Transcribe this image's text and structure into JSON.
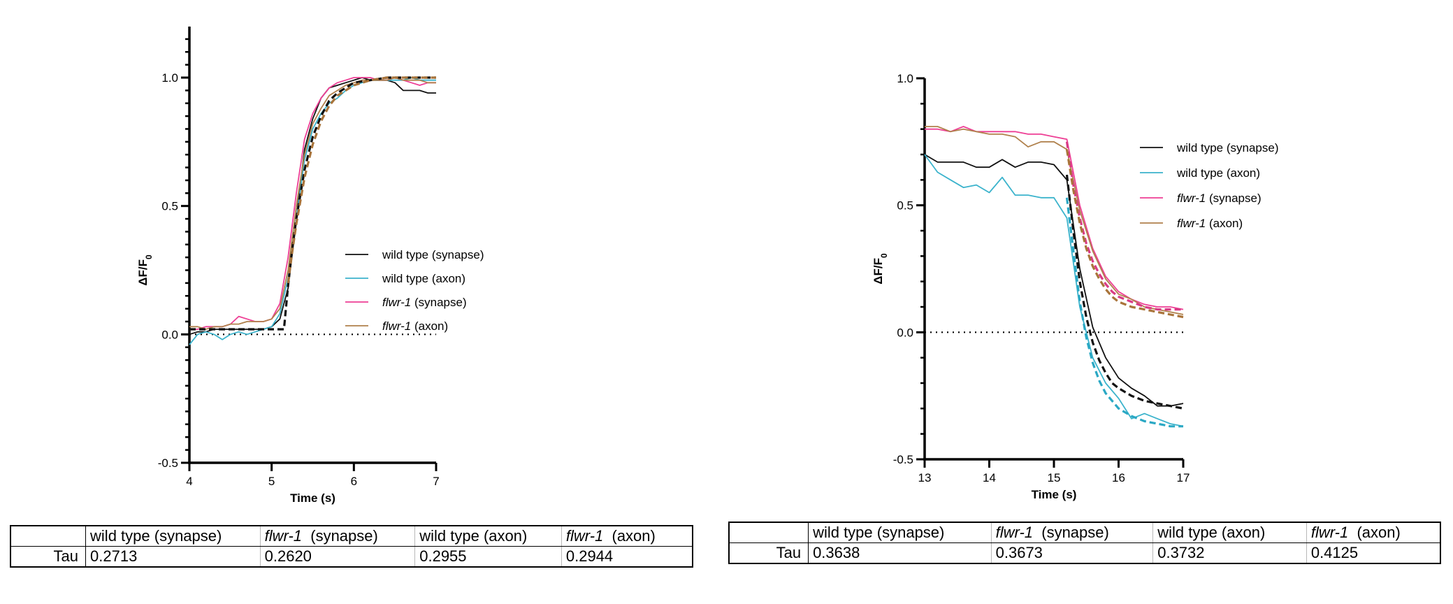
{
  "colors": {
    "wt_synapse": "#111111",
    "wt_axon": "#3bb3cc",
    "flwr_synapse": "#ee3f95",
    "flwr_axon": "#b0814c",
    "fit_wt": "#111111",
    "fit_flwr": "#a9743a",
    "fit_axon": "#2aa8c4",
    "fit_flwr_syn": "#d93b86"
  },
  "chart_data": [
    {
      "type": "line",
      "title": "",
      "xlabel": "Time (s)",
      "ylabel": "ΔF/F",
      "ylabel_sub": "0",
      "xlim": [
        4,
        7
      ],
      "ylim": [
        -0.5,
        1.2
      ],
      "xticks": [
        4,
        5,
        6,
        7
      ],
      "xtick_labels": [
        "4",
        "5",
        "6",
        "7"
      ],
      "yticks": [
        -0.5,
        0.0,
        0.5,
        1.0
      ],
      "ytick_labels": [
        "-0.5",
        "0.0",
        "0.5",
        "1.0"
      ],
      "grid": false,
      "legend_position": "center-right",
      "baseline": 0,
      "legend": [
        {
          "key": "wt_synapse",
          "parts": [
            {
              "text": "wild type (synapse)",
              "italic": false
            }
          ]
        },
        {
          "key": "wt_axon",
          "parts": [
            {
              "text": "wild type (axon)",
              "italic": false
            }
          ]
        },
        {
          "key": "flwr_synapse",
          "parts": [
            {
              "text": "flwr-1",
              "italic": true
            },
            {
              "text": "  (synapse)",
              "italic": false
            }
          ]
        },
        {
          "key": "flwr_axon",
          "parts": [
            {
              "text": "flwr-1",
              "italic": true
            },
            {
              "text": "  (axon)",
              "italic": false
            }
          ]
        }
      ],
      "x": [
        4.0,
        4.1,
        4.2,
        4.3,
        4.4,
        4.5,
        4.6,
        4.7,
        4.8,
        4.9,
        5.0,
        5.1,
        5.2,
        5.3,
        5.4,
        5.5,
        5.6,
        5.7,
        5.8,
        5.9,
        6.0,
        6.1,
        6.2,
        6.3,
        6.4,
        6.5,
        6.6,
        6.7,
        6.8,
        6.9,
        7.0
      ],
      "series": [
        {
          "key": "wt_synapse",
          "values": [
            0.0,
            0.01,
            0.01,
            0.02,
            0.02,
            0.02,
            0.02,
            0.02,
            0.02,
            0.02,
            0.03,
            0.06,
            0.18,
            0.45,
            0.72,
            0.84,
            0.92,
            0.96,
            0.97,
            0.98,
            0.99,
            1.0,
            0.99,
            0.99,
            0.99,
            0.98,
            0.95,
            0.95,
            0.95,
            0.94,
            0.94
          ]
        },
        {
          "key": "wt_axon",
          "values": [
            -0.04,
            0.0,
            0.01,
            0.0,
            -0.02,
            0.0,
            0.01,
            0.0,
            0.01,
            0.02,
            0.03,
            0.08,
            0.22,
            0.45,
            0.68,
            0.8,
            0.86,
            0.9,
            0.92,
            0.95,
            0.97,
            0.98,
            0.99,
            0.99,
            0.99,
            0.99,
            0.99,
            1.0,
            0.99,
            0.99,
            0.99
          ]
        },
        {
          "key": "flwr_synapse",
          "values": [
            0.02,
            0.02,
            0.03,
            0.03,
            0.03,
            0.04,
            0.07,
            0.06,
            0.05,
            0.05,
            0.06,
            0.12,
            0.3,
            0.55,
            0.76,
            0.86,
            0.92,
            0.96,
            0.98,
            0.99,
            1.0,
            1.0,
            1.0,
            0.99,
            0.99,
            1.0,
            0.99,
            0.98,
            0.97,
            0.98,
            0.98
          ]
        },
        {
          "key": "flwr_axon",
          "values": [
            0.03,
            0.03,
            0.02,
            0.03,
            0.03,
            0.04,
            0.04,
            0.05,
            0.05,
            0.05,
            0.06,
            0.1,
            0.25,
            0.5,
            0.7,
            0.82,
            0.88,
            0.93,
            0.95,
            0.97,
            0.98,
            0.99,
            0.99,
            0.99,
            0.99,
            1.0,
            0.99,
            0.99,
            0.99,
            0.98,
            0.98
          ]
        }
      ],
      "fits": [
        {
          "key": "fit_wt",
          "x": [
            4.0,
            4.2,
            4.4,
            4.6,
            4.8,
            5.0,
            5.1,
            5.15,
            5.2,
            5.25,
            5.3,
            5.4,
            5.5,
            5.6,
            5.7,
            5.8,
            5.9,
            6.0,
            6.2,
            6.4,
            6.6,
            6.8,
            7.0
          ],
          "values": [
            0.02,
            0.02,
            0.02,
            0.02,
            0.02,
            0.02,
            0.02,
            0.02,
            0.19,
            0.33,
            0.45,
            0.64,
            0.77,
            0.85,
            0.91,
            0.94,
            0.96,
            0.98,
            0.99,
            1.0,
            1.0,
            1.0,
            1.0
          ]
        },
        {
          "key": "fit_flwr",
          "x": [
            5.2,
            5.25,
            5.3,
            5.4,
            5.5,
            5.6,
            5.7,
            5.8,
            5.9,
            6.0,
            6.2,
            6.4,
            6.6,
            6.8,
            7.0
          ],
          "values": [
            0.2,
            0.32,
            0.43,
            0.61,
            0.74,
            0.83,
            0.89,
            0.93,
            0.95,
            0.97,
            0.99,
            1.0,
            1.0,
            1.0,
            1.0
          ]
        }
      ],
      "table": {
        "row_label": "Tau",
        "headers": [
          {
            "parts": [
              {
                "text": "wild type (synapse)",
                "italic": false
              }
            ]
          },
          {
            "parts": [
              {
                "text": "flwr-1",
                "italic": true
              },
              {
                "text": "  (synapse)",
                "italic": false
              }
            ]
          },
          {
            "parts": [
              {
                "text": "wild type (axon)",
                "italic": false
              }
            ]
          },
          {
            "parts": [
              {
                "text": "flwr-1",
                "italic": true
              },
              {
                "text": "  (axon)",
                "italic": false
              }
            ]
          }
        ],
        "values": [
          "0.2713",
          "0.2620",
          "0.2955",
          "0.2944"
        ]
      }
    },
    {
      "type": "line",
      "title": "",
      "xlabel": "Time (s)",
      "ylabel": "ΔF/F",
      "ylabel_sub": "0",
      "xlim": [
        13,
        17
      ],
      "ylim": [
        -0.5,
        1.0
      ],
      "xticks": [
        13,
        14,
        15,
        16,
        17
      ],
      "xtick_labels": [
        "13",
        "14",
        "15",
        "16",
        "17"
      ],
      "yticks": [
        -0.5,
        0.0,
        0.5,
        1.0
      ],
      "ytick_labels": [
        "-0.5",
        "0.0",
        "0.5",
        "1.0"
      ],
      "grid": false,
      "legend_position": "top-right",
      "baseline": 0,
      "legend": [
        {
          "key": "wt_synapse",
          "parts": [
            {
              "text": "wild type (synapse)",
              "italic": false
            }
          ]
        },
        {
          "key": "wt_axon",
          "parts": [
            {
              "text": "wild type (axon)",
              "italic": false
            }
          ]
        },
        {
          "key": "flwr_synapse",
          "parts": [
            {
              "text": "flwr-1",
              "italic": true
            },
            {
              "text": "  (synapse)",
              "italic": false
            }
          ]
        },
        {
          "key": "flwr_axon",
          "parts": [
            {
              "text": "flwr-1",
              "italic": true
            },
            {
              "text": "  (axon)",
              "italic": false
            }
          ]
        }
      ],
      "x": [
        13.0,
        13.2,
        13.4,
        13.6,
        13.8,
        14.0,
        14.2,
        14.4,
        14.6,
        14.8,
        15.0,
        15.2,
        15.4,
        15.6,
        15.8,
        16.0,
        16.2,
        16.4,
        16.6,
        16.8,
        17.0
      ],
      "series": [
        {
          "key": "wt_synapse",
          "values": [
            0.7,
            0.67,
            0.67,
            0.67,
            0.65,
            0.65,
            0.68,
            0.65,
            0.67,
            0.67,
            0.66,
            0.6,
            0.25,
            0.02,
            -0.1,
            -0.18,
            -0.22,
            -0.25,
            -0.29,
            -0.29,
            -0.28
          ]
        },
        {
          "key": "wt_axon",
          "values": [
            0.7,
            0.63,
            0.6,
            0.57,
            0.58,
            0.55,
            0.61,
            0.54,
            0.54,
            0.53,
            0.53,
            0.45,
            0.1,
            -0.1,
            -0.2,
            -0.26,
            -0.34,
            -0.32,
            -0.34,
            -0.36,
            -0.37
          ]
        },
        {
          "key": "flwr_synapse",
          "values": [
            0.8,
            0.8,
            0.79,
            0.81,
            0.79,
            0.79,
            0.79,
            0.79,
            0.78,
            0.78,
            0.77,
            0.76,
            0.5,
            0.33,
            0.22,
            0.16,
            0.13,
            0.11,
            0.1,
            0.1,
            0.09
          ]
        },
        {
          "key": "flwr_axon",
          "values": [
            0.81,
            0.81,
            0.79,
            0.8,
            0.79,
            0.78,
            0.78,
            0.77,
            0.73,
            0.75,
            0.75,
            0.72,
            0.48,
            0.32,
            0.21,
            0.15,
            0.13,
            0.1,
            0.09,
            0.08,
            0.07
          ]
        }
      ],
      "fits": [
        {
          "key": "fit_wt",
          "x": [
            15.2,
            15.3,
            15.4,
            15.5,
            15.6,
            15.7,
            15.8,
            15.9,
            16.0,
            16.2,
            16.4,
            16.6,
            16.8,
            17.0
          ],
          "values": [
            0.62,
            0.4,
            0.2,
            0.06,
            -0.04,
            -0.11,
            -0.16,
            -0.2,
            -0.22,
            -0.25,
            -0.27,
            -0.28,
            -0.29,
            -0.3
          ]
        },
        {
          "key": "fit_axon",
          "x": [
            15.2,
            15.3,
            15.4,
            15.5,
            15.6,
            15.7,
            15.8,
            15.9,
            16.0,
            16.2,
            16.4,
            16.6,
            16.8,
            17.0
          ],
          "values": [
            0.53,
            0.32,
            0.12,
            -0.02,
            -0.12,
            -0.19,
            -0.24,
            -0.27,
            -0.3,
            -0.33,
            -0.35,
            -0.36,
            -0.37,
            -0.37
          ]
        },
        {
          "key": "fit_flwr_syn",
          "x": [
            15.2,
            15.3,
            15.4,
            15.5,
            15.6,
            15.7,
            15.8,
            15.9,
            16.0,
            16.2,
            16.4,
            16.6,
            16.8,
            17.0
          ],
          "values": [
            0.75,
            0.58,
            0.45,
            0.35,
            0.28,
            0.23,
            0.19,
            0.16,
            0.14,
            0.12,
            0.1,
            0.09,
            0.09,
            0.09
          ]
        },
        {
          "key": "fit_flwr",
          "x": [
            15.2,
            15.3,
            15.4,
            15.5,
            15.6,
            15.7,
            15.8,
            15.9,
            16.0,
            16.2,
            16.4,
            16.6,
            16.8,
            17.0
          ],
          "values": [
            0.72,
            0.56,
            0.43,
            0.33,
            0.26,
            0.21,
            0.17,
            0.14,
            0.12,
            0.1,
            0.09,
            0.08,
            0.07,
            0.06
          ]
        }
      ],
      "table": {
        "row_label": "Tau",
        "headers": [
          {
            "parts": [
              {
                "text": "wild type (synapse)",
                "italic": false
              }
            ]
          },
          {
            "parts": [
              {
                "text": "flwr-1",
                "italic": true
              },
              {
                "text": "  (synapse)",
                "italic": false
              }
            ]
          },
          {
            "parts": [
              {
                "text": "wild type (axon)",
                "italic": false
              }
            ]
          },
          {
            "parts": [
              {
                "text": "flwr-1",
                "italic": true
              },
              {
                "text": "  (axon)",
                "italic": false
              }
            ]
          }
        ],
        "values": [
          "0.3638",
          "0.3673",
          "0.3732",
          "0.4125"
        ]
      }
    }
  ]
}
